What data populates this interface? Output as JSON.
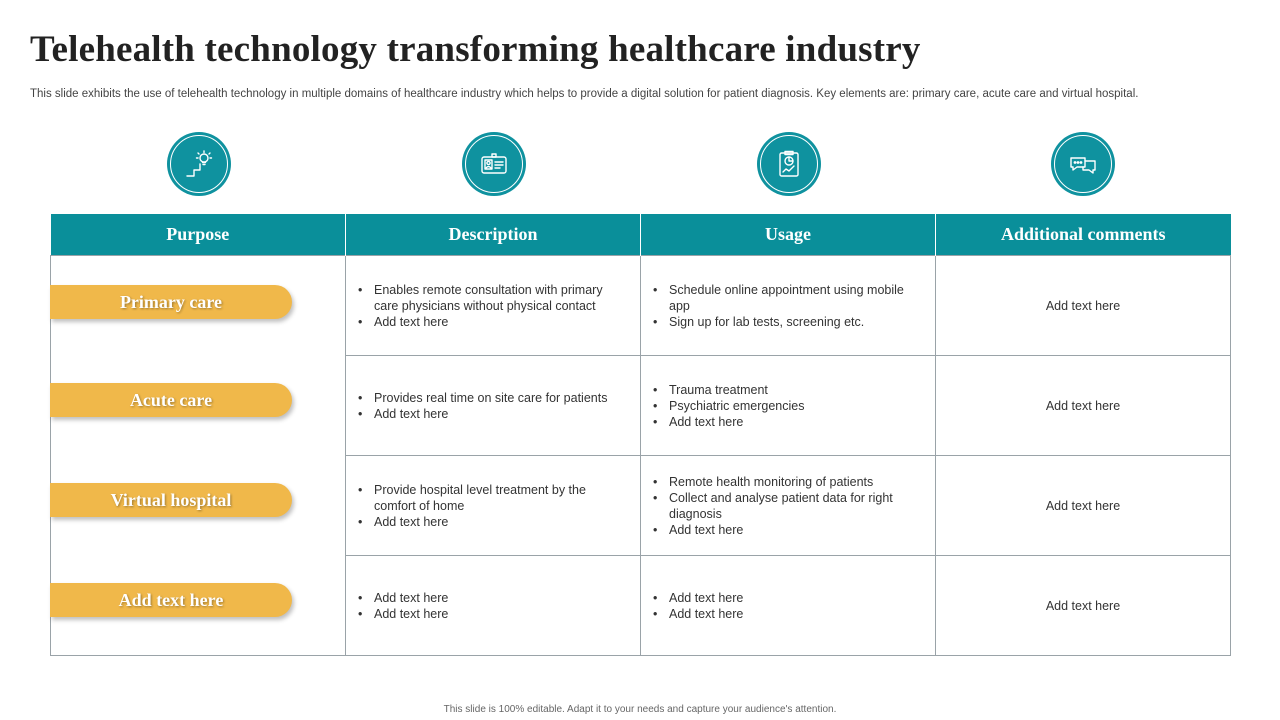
{
  "slide": {
    "title": "Telehealth technology transforming healthcare industry",
    "subtitle": "This slide exhibits the use of telehealth technology in multiple domains of healthcare industry which helps to provide a digital solution for patient diagnosis. Key elements are: primary care, acute care and virtual hospital.",
    "footer": "This slide is 100% editable. Adapt it to your needs and capture your audience's attention."
  },
  "colors": {
    "teal": "#0a8f9a",
    "gold": "#f0b84a"
  },
  "icons": [
    "growth-lightbulb-icon",
    "id-card-icon",
    "clipboard-chart-icon",
    "chat-bubbles-icon"
  ],
  "table": {
    "headers": [
      "Purpose",
      "Description",
      "Usage",
      "Additional comments"
    ],
    "rows": [
      {
        "purpose": "Primary care",
        "description": [
          "Enables remote consultation with primary care physicians without physical contact",
          "Add text here"
        ],
        "usage": [
          "Schedule online appointment using mobile app",
          "Sign up for lab tests, screening etc."
        ],
        "comment": "Add text here"
      },
      {
        "purpose": "Acute care",
        "description": [
          "Provides real time on site care for patients",
          "Add text here"
        ],
        "usage": [
          "Trauma treatment",
          "Psychiatric emergencies",
          "Add text here"
        ],
        "comment": "Add text here"
      },
      {
        "purpose": "Virtual hospital",
        "description": [
          "Provide hospital level treatment by the comfort of home",
          "Add text here"
        ],
        "usage": [
          "Remote health monitoring of patients",
          "Collect and analyse patient data for right diagnosis",
          "Add text here"
        ],
        "comment": "Add text here"
      },
      {
        "purpose": "Add text here",
        "description": [
          "Add text here",
          "Add text here"
        ],
        "usage": [
          "Add text here",
          "Add text here"
        ],
        "comment": "Add text here"
      }
    ]
  }
}
